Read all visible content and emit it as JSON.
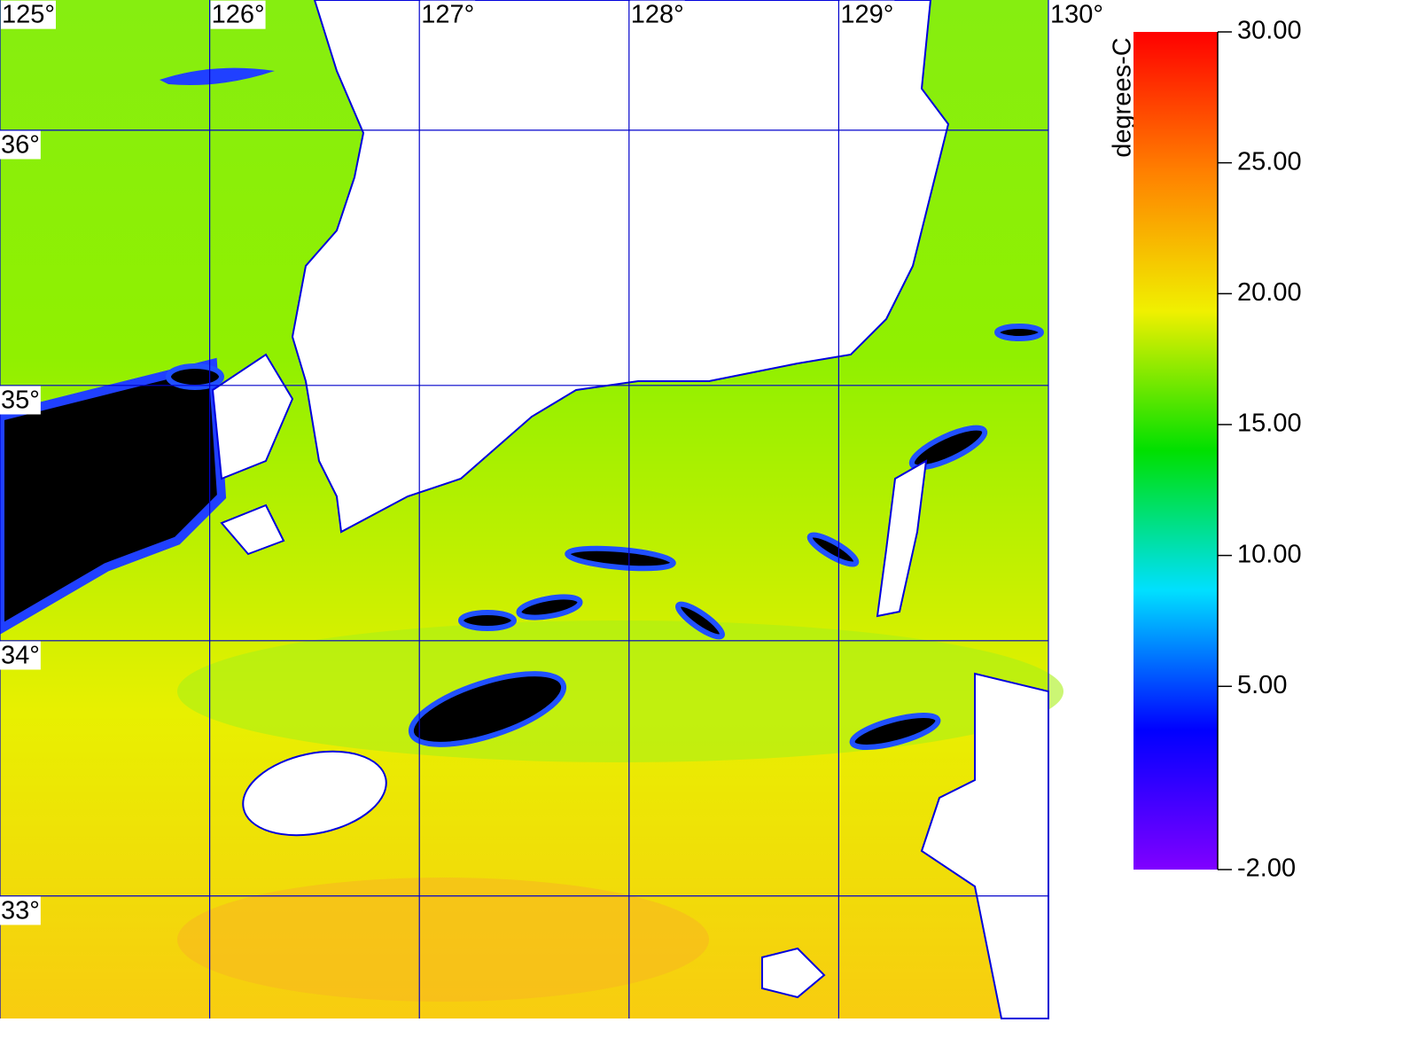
{
  "map": {
    "xlim": [
      125,
      130
    ],
    "ylim": [
      32.52,
      36.51
    ],
    "xticks": [
      {
        "value": 125,
        "label": "125°"
      },
      {
        "value": 126,
        "label": "126°"
      },
      {
        "value": 127,
        "label": "127°"
      },
      {
        "value": 128,
        "label": "128°"
      },
      {
        "value": 129,
        "label": "129°"
      },
      {
        "value": 130,
        "label": "130°"
      }
    ],
    "yticks": [
      {
        "value": 36,
        "label": "36°"
      },
      {
        "value": 35,
        "label": "35°"
      },
      {
        "value": 34,
        "label": "34°"
      },
      {
        "value": 33,
        "label": "33°"
      }
    ],
    "grid_color": "#0000cc",
    "colorbar": {
      "label": "degrees-C",
      "lim": [
        -2,
        30
      ],
      "ticks": [
        {
          "value": 30,
          "label": "30.00"
        },
        {
          "value": 25,
          "label": "25.00"
        },
        {
          "value": 20,
          "label": "20.00"
        },
        {
          "value": 15,
          "label": "15.00"
        },
        {
          "value": 10,
          "label": "10.00"
        },
        {
          "value": 5,
          "label": "5.00"
        },
        {
          "value": -2,
          "label": "-2.00"
        }
      ],
      "colors": [
        "#8000ff",
        "#0000ff",
        "#00e0ff",
        "#00e000",
        "#f0f000",
        "#ff8000",
        "#ff0000"
      ]
    }
  }
}
